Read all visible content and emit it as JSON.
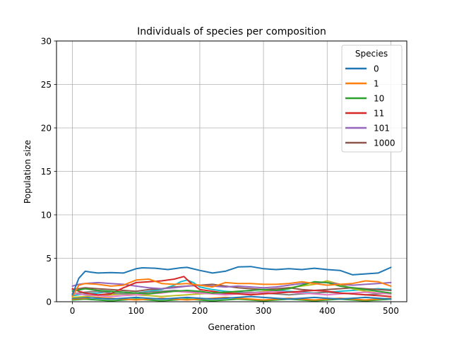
{
  "chart_data": {
    "type": "line",
    "title": "Individuals of species per composition",
    "xlabel": "Generation",
    "ylabel": "Population size",
    "xlim": [
      -25,
      525
    ],
    "ylim": [
      0,
      30
    ],
    "xticks": [
      0,
      100,
      200,
      300,
      400,
      500
    ],
    "yticks": [
      0,
      5,
      10,
      15,
      20,
      25,
      30
    ],
    "grid": true,
    "legend": {
      "title": "Species",
      "placement": "top-right"
    },
    "series": [
      {
        "name": "0",
        "color": "#1f77b4",
        "x": [
          0,
          10,
          20,
          30,
          40,
          60,
          80,
          100,
          110,
          130,
          150,
          170,
          180,
          200,
          220,
          240,
          260,
          280,
          300,
          320,
          340,
          360,
          380,
          400,
          420,
          440,
          460,
          480,
          500
        ],
        "y": [
          0.8,
          2.7,
          3.5,
          3.4,
          3.3,
          3.35,
          3.3,
          3.8,
          3.9,
          3.85,
          3.7,
          3.9,
          3.95,
          3.6,
          3.3,
          3.5,
          4.0,
          4.05,
          3.8,
          3.7,
          3.8,
          3.7,
          3.85,
          3.7,
          3.6,
          3.1,
          3.2,
          3.3,
          3.95
        ]
      },
      {
        "name": "1",
        "color": "#ff7f0e",
        "x": [
          0,
          10,
          20,
          40,
          60,
          80,
          100,
          120,
          140,
          160,
          180,
          200,
          220,
          240,
          260,
          280,
          300,
          320,
          340,
          360,
          380,
          400,
          420,
          440,
          460,
          480,
          500
        ],
        "y": [
          0.6,
          1.9,
          2.1,
          2.0,
          1.8,
          1.9,
          2.5,
          2.6,
          2.1,
          2.0,
          2.1,
          1.9,
          1.7,
          2.2,
          2.1,
          2.1,
          2.0,
          2.0,
          2.1,
          2.3,
          2.1,
          1.9,
          2.0,
          2.1,
          2.4,
          2.3,
          1.8
        ]
      },
      {
        "name": "10",
        "color": "#2ca02c",
        "x": [
          0,
          20,
          40,
          60,
          80,
          100,
          120,
          140,
          160,
          180,
          200,
          220,
          240,
          260,
          280,
          300,
          320,
          340,
          360,
          380,
          400,
          420,
          440,
          460,
          480,
          500
        ],
        "y": [
          1.2,
          1.5,
          1.3,
          1.2,
          1.1,
          1.0,
          0.9,
          1.1,
          1.2,
          1.3,
          1.2,
          1.0,
          1.1,
          1.2,
          1.3,
          1.4,
          1.3,
          1.5,
          1.9,
          2.3,
          2.2,
          1.8,
          1.6,
          1.4,
          1.2,
          1.0
        ]
      },
      {
        "name": "11",
        "color": "#d62728",
        "x": [
          0,
          10,
          20,
          40,
          60,
          80,
          100,
          120,
          140,
          160,
          175,
          185,
          200,
          220,
          240,
          260,
          280,
          300,
          320,
          340,
          360,
          380,
          400,
          420,
          440,
          460,
          480,
          500
        ],
        "y": [
          1.5,
          1.2,
          1.0,
          0.8,
          0.9,
          1.6,
          2.2,
          2.3,
          2.4,
          2.6,
          2.9,
          2.2,
          1.4,
          1.2,
          1.0,
          0.9,
          0.8,
          0.9,
          1.0,
          1.1,
          1.2,
          1.3,
          1.2,
          1.0,
          0.9,
          0.8,
          0.7,
          0.6
        ]
      },
      {
        "name": "101",
        "color": "#9467bd",
        "x": [
          0,
          10,
          20,
          40,
          60,
          80,
          100,
          120,
          140,
          160,
          180,
          200,
          220,
          240,
          260,
          280,
          300,
          320,
          340,
          360,
          380,
          400,
          420,
          440,
          460,
          480,
          500
        ],
        "y": [
          1.8,
          2.0,
          2.1,
          2.2,
          2.1,
          2.0,
          1.8,
          1.6,
          1.5,
          1.6,
          1.8,
          1.9,
          1.8,
          1.7,
          1.8,
          1.7,
          1.6,
          1.7,
          1.9,
          2.1,
          2.2,
          2.2,
          2.0,
          1.9,
          2.0,
          2.1,
          2.2
        ]
      },
      {
        "name": "1000",
        "color": "#8c564b",
        "x": [
          0,
          20,
          40,
          60,
          80,
          100,
          120,
          140,
          160,
          180,
          200,
          220,
          240,
          260,
          280,
          300,
          320,
          340,
          360,
          380,
          400,
          420,
          440,
          460,
          480,
          500
        ],
        "y": [
          1.4,
          1.6,
          1.5,
          1.4,
          1.3,
          1.2,
          1.4,
          1.5,
          1.7,
          1.8,
          1.9,
          2.0,
          1.8,
          1.6,
          1.5,
          1.4,
          1.5,
          1.6,
          1.4,
          1.3,
          1.4,
          1.5,
          1.6,
          1.5,
          1.4,
          1.3
        ]
      },
      {
        "color": "#e377c2",
        "x": [
          0,
          20,
          40,
          60,
          80,
          100,
          120,
          140,
          160,
          180,
          200,
          220,
          240,
          260,
          280,
          300,
          320,
          340,
          360,
          380,
          400,
          420,
          440,
          460,
          480,
          500
        ],
        "y": [
          1.0,
          0.8,
          0.7,
          0.6,
          0.7,
          0.8,
          0.9,
          1.0,
          1.2,
          1.1,
          1.0,
          0.9,
          0.8,
          0.9,
          1.0,
          1.1,
          1.2,
          1.1,
          1.0,
          0.9,
          0.8,
          0.9,
          1.0,
          1.1,
          1.0,
          0.9
        ]
      },
      {
        "color": "#7f7f7f",
        "x": [
          0,
          20,
          40,
          60,
          80,
          100,
          120,
          140,
          160,
          180,
          200,
          220,
          240,
          260,
          280,
          300,
          320,
          340,
          360,
          380,
          400,
          420,
          440,
          460,
          480,
          500
        ],
        "y": [
          0.9,
          1.1,
          1.2,
          1.0,
          0.9,
          1.0,
          1.1,
          1.2,
          1.3,
          1.2,
          1.1,
          1.0,
          0.9,
          1.0,
          1.1,
          1.0,
          0.9,
          0.8,
          0.9,
          1.0,
          1.1,
          1.0,
          0.9,
          0.8,
          0.9,
          1.0
        ]
      },
      {
        "color": "#bcbd22",
        "x": [
          0,
          20,
          40,
          60,
          80,
          100,
          120,
          140,
          160,
          180,
          200,
          220,
          240,
          260,
          280,
          300,
          320,
          340,
          360,
          380,
          400,
          420,
          440,
          460,
          480,
          500
        ],
        "y": [
          0.5,
          0.6,
          0.7,
          0.8,
          0.9,
          0.8,
          0.7,
          0.6,
          0.7,
          0.8,
          0.9,
          1.0,
          1.1,
          1.0,
          0.9,
          1.2,
          1.4,
          1.6,
          1.8,
          2.0,
          2.4,
          2.0,
          1.5,
          1.2,
          1.0,
          0.9
        ]
      },
      {
        "color": "#17becf",
        "x": [
          0,
          20,
          40,
          60,
          80,
          100,
          120,
          140,
          160,
          170,
          180,
          190,
          200,
          220,
          240,
          260,
          280,
          300,
          320,
          340,
          360,
          380,
          400,
          420,
          440,
          460,
          480,
          500
        ],
        "y": [
          0.7,
          0.9,
          1.0,
          1.2,
          1.1,
          1.0,
          1.2,
          1.4,
          1.9,
          2.3,
          2.5,
          2.2,
          1.7,
          1.4,
          1.2,
          1.1,
          1.0,
          1.2,
          1.3,
          1.2,
          1.1,
          1.0,
          1.1,
          1.2,
          1.3,
          1.4,
          1.5,
          1.4
        ]
      },
      {
        "color": "#1f77b4",
        "x": [
          0,
          20,
          40,
          60,
          80,
          100,
          120,
          140,
          160,
          180,
          200,
          220,
          240,
          260,
          280,
          300,
          320,
          340,
          360,
          380,
          400,
          420,
          440,
          460,
          480,
          500
        ],
        "y": [
          0.4,
          0.5,
          0.4,
          0.3,
          0.4,
          0.5,
          0.4,
          0.3,
          0.4,
          0.5,
          0.4,
          0.3,
          0.4,
          0.5,
          0.6,
          0.5,
          0.4,
          0.3,
          0.4,
          0.5,
          0.4,
          0.3,
          0.4,
          0.5,
          0.4,
          0.3
        ]
      },
      {
        "color": "#ff7f0e",
        "x": [
          0,
          20,
          40,
          60,
          80,
          100,
          120,
          140,
          160,
          180,
          200,
          220,
          240,
          260,
          280,
          300,
          320,
          340,
          360,
          380,
          400,
          420,
          440,
          460,
          480,
          500
        ],
        "y": [
          0.3,
          0.4,
          0.5,
          0.4,
          0.3,
          0.2,
          0.3,
          0.4,
          0.3,
          0.2,
          0.3,
          0.4,
          0.5,
          0.4,
          0.3,
          0.2,
          0.3,
          0.4,
          0.3,
          0.2,
          0.3,
          0.4,
          0.3,
          0.2,
          0.3,
          0.4
        ]
      },
      {
        "color": "#2ca02c",
        "x": [
          0,
          20,
          40,
          60,
          80,
          100,
          120,
          140,
          160,
          180,
          200,
          220,
          240,
          260,
          280,
          300,
          320,
          340,
          360,
          380,
          400,
          420,
          440,
          460,
          480,
          500
        ],
        "y": [
          0.2,
          0.3,
          0.2,
          0.1,
          0.2,
          0.3,
          0.2,
          0.1,
          0.2,
          0.3,
          0.2,
          0.1,
          0.2,
          0.3,
          0.2,
          0.1,
          0.2,
          0.3,
          0.2,
          0.1,
          0.2,
          0.3,
          0.2,
          0.1,
          0.2,
          0.3
        ]
      }
    ]
  }
}
